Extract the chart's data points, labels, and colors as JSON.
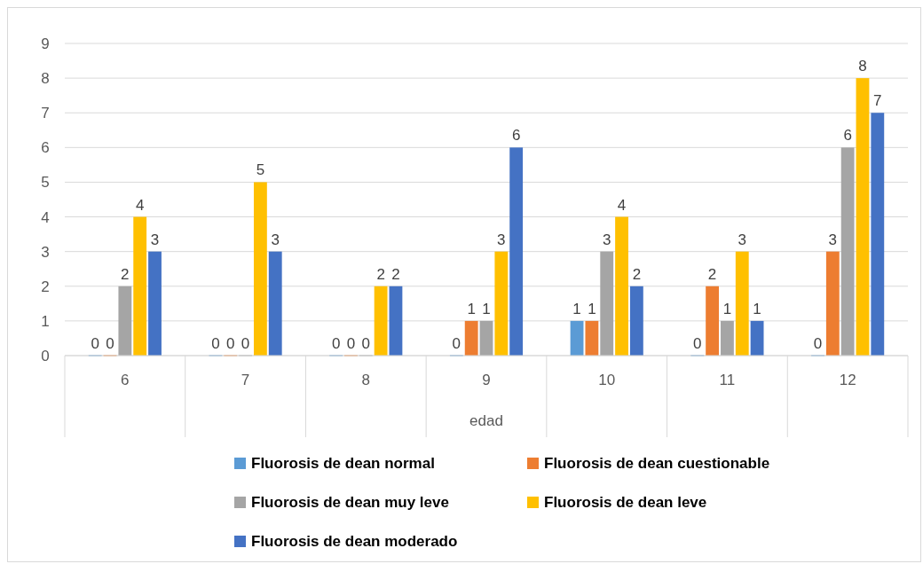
{
  "chart_data": {
    "type": "bar",
    "xlabel": "edad",
    "categories": [
      "6",
      "7",
      "8",
      "9",
      "10",
      "11",
      "12"
    ],
    "series": [
      {
        "name": "Fluorosis de dean normal",
        "color": "#5b9bd5",
        "values": [
          0,
          0,
          0,
          0,
          1,
          0,
          0
        ]
      },
      {
        "name": "Fluorosis de dean cuestionable",
        "color": "#ed7d31",
        "values": [
          0,
          0,
          0,
          1,
          1,
          2,
          3
        ]
      },
      {
        "name": "Fluorosis de dean muy leve",
        "color": "#a5a5a5",
        "values": [
          2,
          0,
          0,
          1,
          3,
          1,
          6
        ]
      },
      {
        "name": "Fluorosis de dean leve",
        "color": "#ffc000",
        "values": [
          4,
          5,
          2,
          3,
          4,
          3,
          8
        ]
      },
      {
        "name": "Fluorosis de dean moderado",
        "color": "#4472c4",
        "values": [
          3,
          3,
          2,
          6,
          2,
          1,
          7
        ]
      }
    ],
    "ylim": [
      0,
      9
    ],
    "yticks": [
      0,
      1,
      2,
      3,
      4,
      5,
      6,
      7,
      8,
      9
    ],
    "grid": "y",
    "data_labels": true,
    "legend": "bottom"
  }
}
